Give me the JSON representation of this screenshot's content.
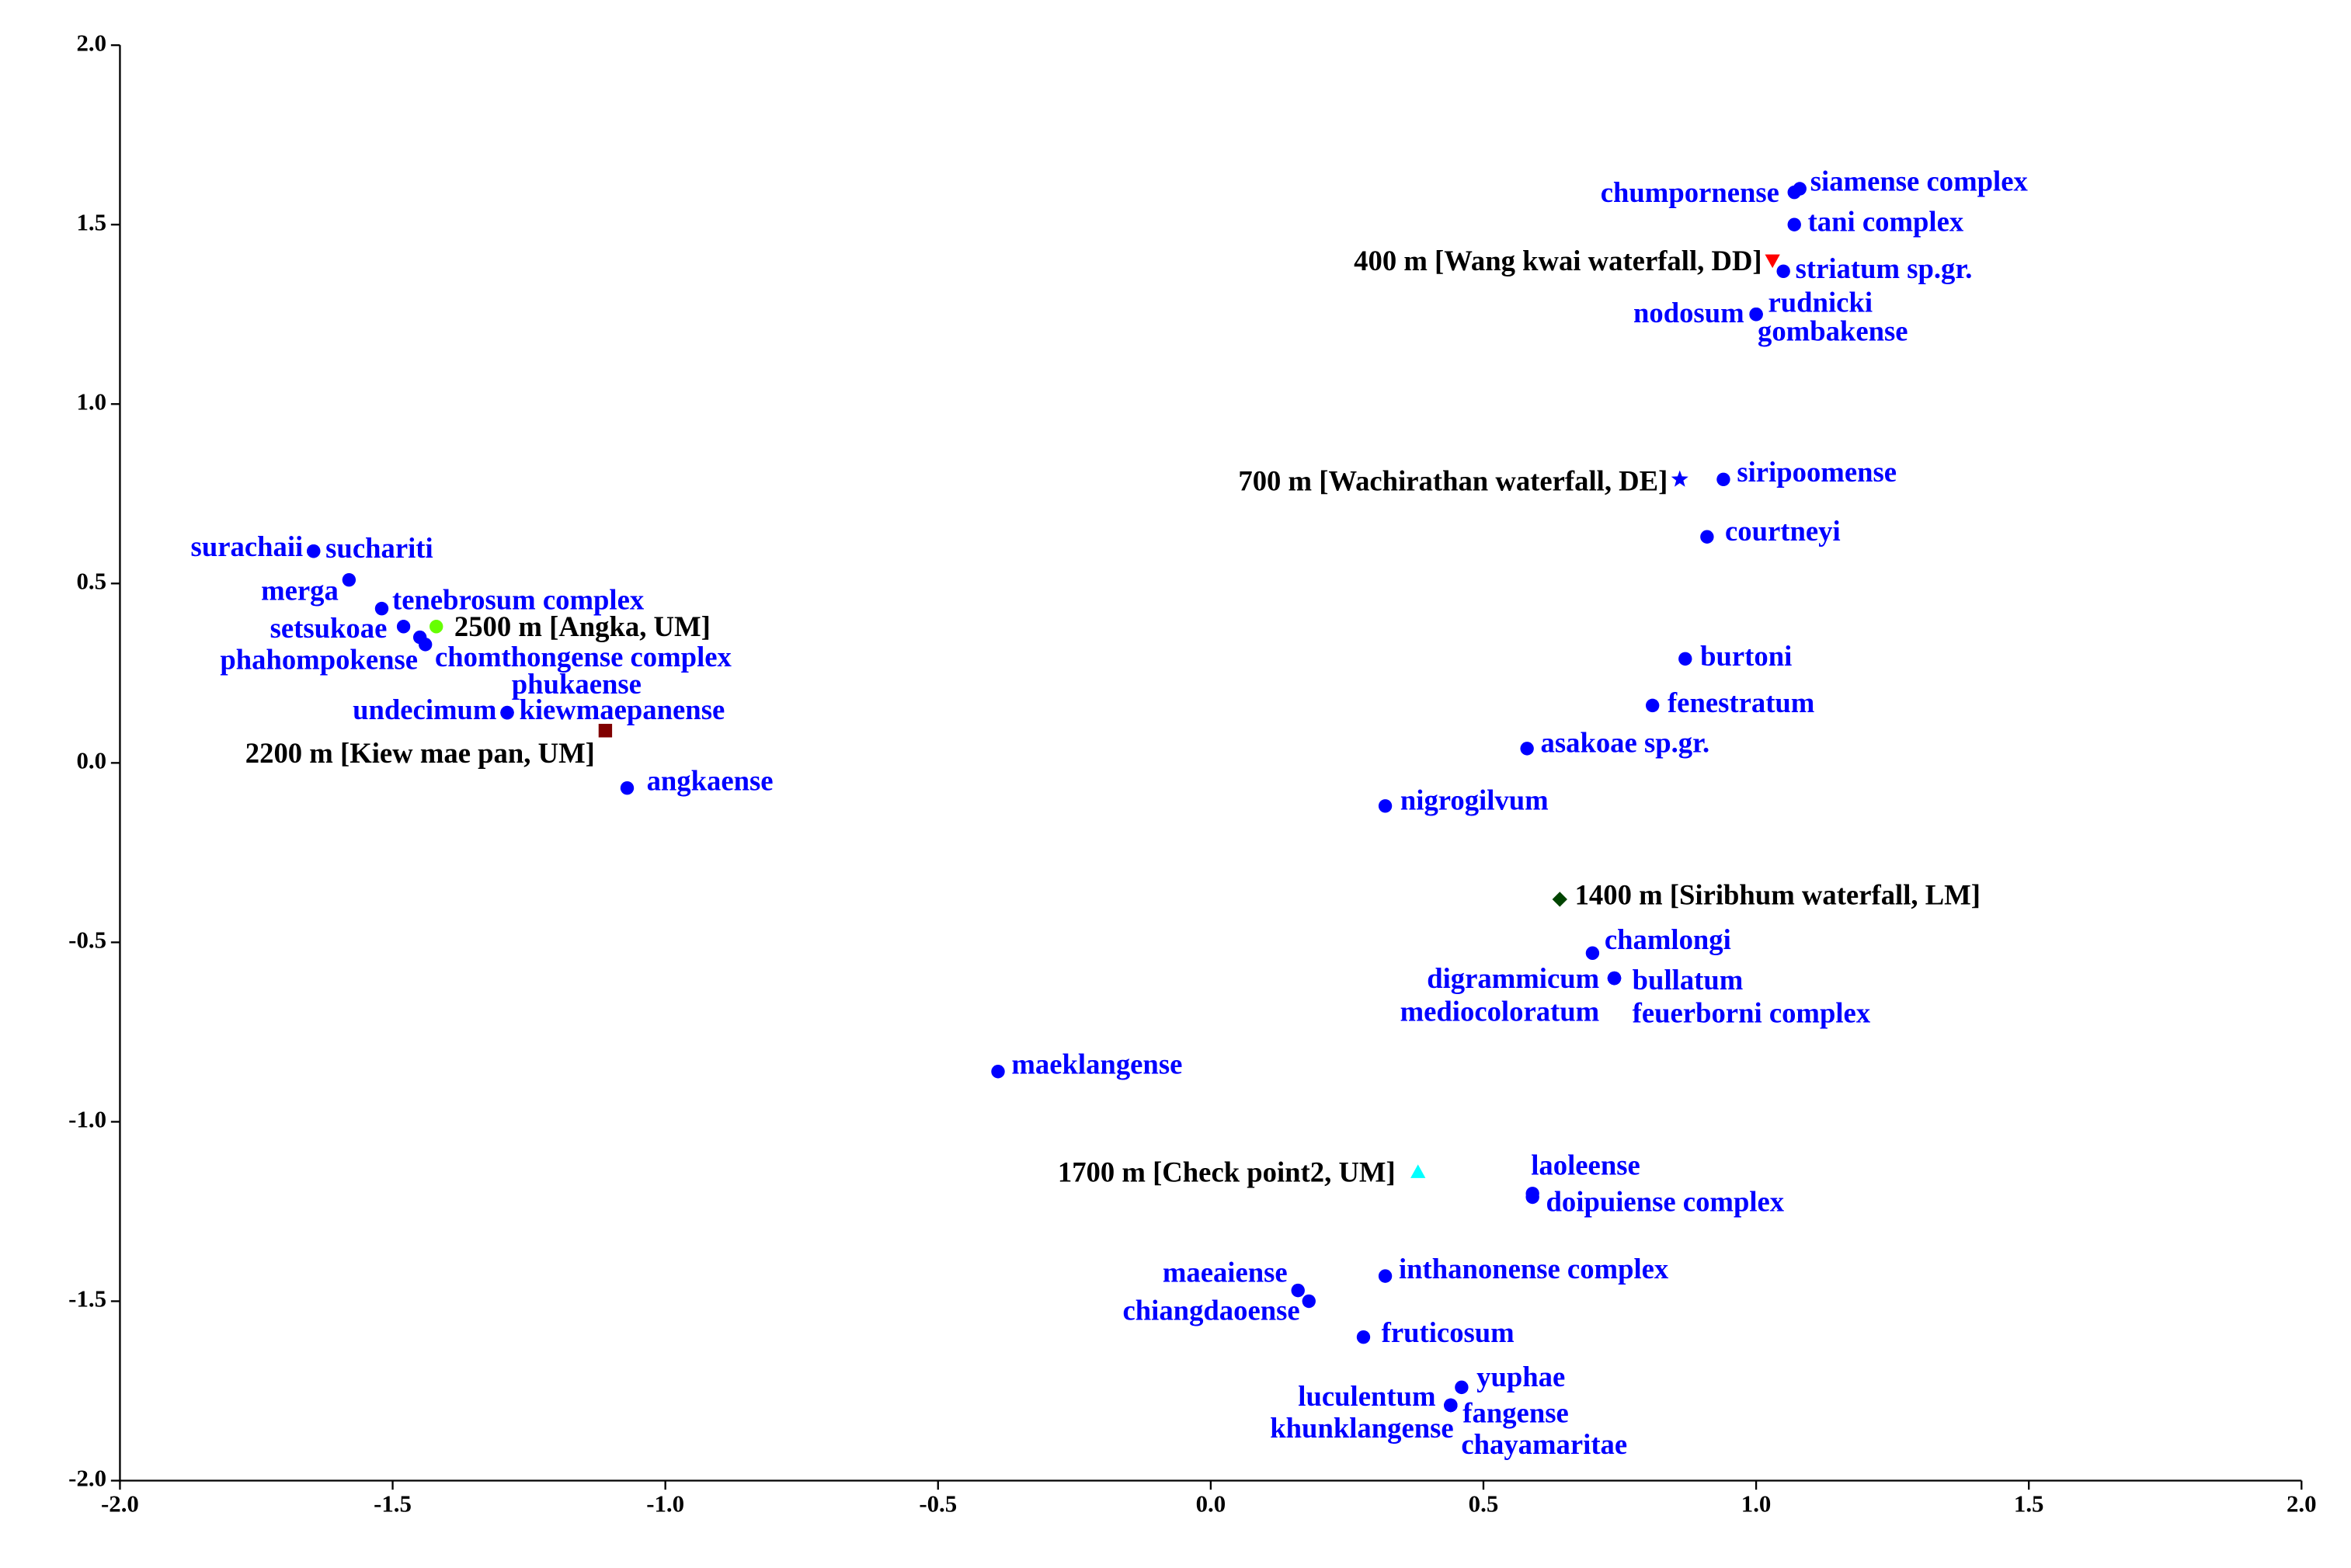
{
  "chart_data": {
    "type": "scatter",
    "xlim": [
      -2,
      2
    ],
    "ylim": [
      -2,
      2
    ],
    "xticks": [
      {
        "value": -2,
        "label": "-2.0"
      },
      -1.5,
      {
        "value": -1,
        "label": "-1.0"
      },
      -0.5,
      {
        "value": 0,
        "label": "0.0"
      },
      0.5,
      {
        "value": 1,
        "label": "1.0"
      },
      1.5,
      {
        "value": 2,
        "label": "2.0"
      }
    ],
    "yticks": [
      {
        "value": -2,
        "label": "-2.0"
      },
      -1.5,
      {
        "value": -1,
        "label": "-1.0"
      },
      -0.5,
      {
        "value": 0,
        "label": "0.0"
      },
      0.5,
      {
        "value": 1,
        "label": "1.0"
      },
      1.5,
      {
        "value": 2,
        "label": "2.0"
      }
    ],
    "color": "#0000ff",
    "points": [
      {
        "label": "surachaii",
        "x": -1.645,
        "y": 0.59
      },
      {
        "label": "suchariti",
        "x": -1.645,
        "y": 0.59
      },
      {
        "label": "merga",
        "x": -1.58,
        "y": 0.51
      },
      {
        "label": "tenebrosum complex",
        "x": -1.52,
        "y": 0.43
      },
      {
        "label": "setsukoae",
        "x": -1.48,
        "y": 0.38
      },
      {
        "label": "chomthongense complex",
        "x": -1.45,
        "y": 0.35
      },
      {
        "label": "phahompokense",
        "x": -1.44,
        "y": 0.33
      },
      {
        "label": "phukaense",
        "x": -1.29,
        "y": 0.14
      },
      {
        "label": "undecimum",
        "x": -1.29,
        "y": 0.14
      },
      {
        "label": "kiewmaepanense",
        "x": -1.29,
        "y": 0.14
      },
      {
        "label": "angkaense",
        "x": -1.07,
        "y": -0.07
      },
      {
        "label": "maeklangense",
        "x": -0.39,
        "y": -0.86
      },
      {
        "label": "chumpornense",
        "x": 1.07,
        "y": 1.59
      },
      {
        "label": "siamense complex",
        "x": 1.08,
        "y": 1.6
      },
      {
        "label": "tani complex",
        "x": 1.07,
        "y": 1.5
      },
      {
        "label": "striatum sp.gr.",
        "x": 1.05,
        "y": 1.37
      },
      {
        "label": "nodosum",
        "x": 1.0,
        "y": 1.25
      },
      {
        "label": "rudnicki",
        "x": 1.0,
        "y": 1.25
      },
      {
        "label": "gombakense",
        "x": 1.0,
        "y": 1.25
      },
      {
        "label": "siripoomense",
        "x": 0.94,
        "y": 0.79
      },
      {
        "label": "courtneyi",
        "x": 0.91,
        "y": 0.63
      },
      {
        "label": "burtoni",
        "x": 0.87,
        "y": 0.29
      },
      {
        "label": "fenestratum",
        "x": 0.81,
        "y": 0.16
      },
      {
        "label": "asakoae sp.gr.",
        "x": 0.58,
        "y": 0.04
      },
      {
        "label": "nigrogilvum",
        "x": 0.32,
        "y": -0.12
      },
      {
        "label": "chamlongi",
        "x": 0.7,
        "y": -0.53
      },
      {
        "label": "digrammicum",
        "x": 0.74,
        "y": -0.6
      },
      {
        "label": "bullatum",
        "x": 0.74,
        "y": -0.6
      },
      {
        "label": "mediocoloratum",
        "x": 0.74,
        "y": -0.6
      },
      {
        "label": "feuerborni complex",
        "x": 0.74,
        "y": -0.6
      },
      {
        "label": "laoleense",
        "x": 0.59,
        "y": -1.2
      },
      {
        "label": "doipuiense complex",
        "x": 0.59,
        "y": -1.21
      },
      {
        "label": "inthanonense complex",
        "x": 0.32,
        "y": -1.43
      },
      {
        "label": "maeaiense",
        "x": 0.16,
        "y": -1.47
      },
      {
        "label": "chiangdaoense",
        "x": 0.18,
        "y": -1.5
      },
      {
        "label": "fruticosum",
        "x": 0.28,
        "y": -1.6
      },
      {
        "label": "yuphae",
        "x": 0.46,
        "y": -1.74
      },
      {
        "label": "luculentum",
        "x": 0.44,
        "y": -1.79
      },
      {
        "label": "fangense",
        "x": 0.44,
        "y": -1.79
      },
      {
        "label": "khunklangense",
        "x": 0.44,
        "y": -1.79
      },
      {
        "label": "chayamaritae",
        "x": 0.44,
        "y": -1.79
      }
    ],
    "sites": [
      {
        "label": "400 m [Wang kwai waterfall, DD]",
        "x": 1.03,
        "y": 1.4,
        "marker": "triangle-down",
        "color": "#ff0000"
      },
      {
        "label": "700 m [Wachirathan waterfall, DE]",
        "x": 0.86,
        "y": 0.79,
        "marker": "star",
        "color": "#0000ff"
      },
      {
        "label": "2500 m [Angka, UM]",
        "x": -1.42,
        "y": 0.38,
        "marker": "circle",
        "color": "#66ff00"
      },
      {
        "label": "2200 m [Kiew mae pan, UM]",
        "x": -1.11,
        "y": 0.09,
        "marker": "square",
        "color": "#800000"
      },
      {
        "label": "1400 m [Siribhum waterfall, LM]",
        "x": 0.64,
        "y": -0.38,
        "marker": "diamond",
        "color": "#004400"
      },
      {
        "label": "1700 m [Check point2, UM]",
        "x": 0.38,
        "y": -1.14,
        "marker": "triangle-up",
        "color": "#00ffff"
      }
    ]
  }
}
